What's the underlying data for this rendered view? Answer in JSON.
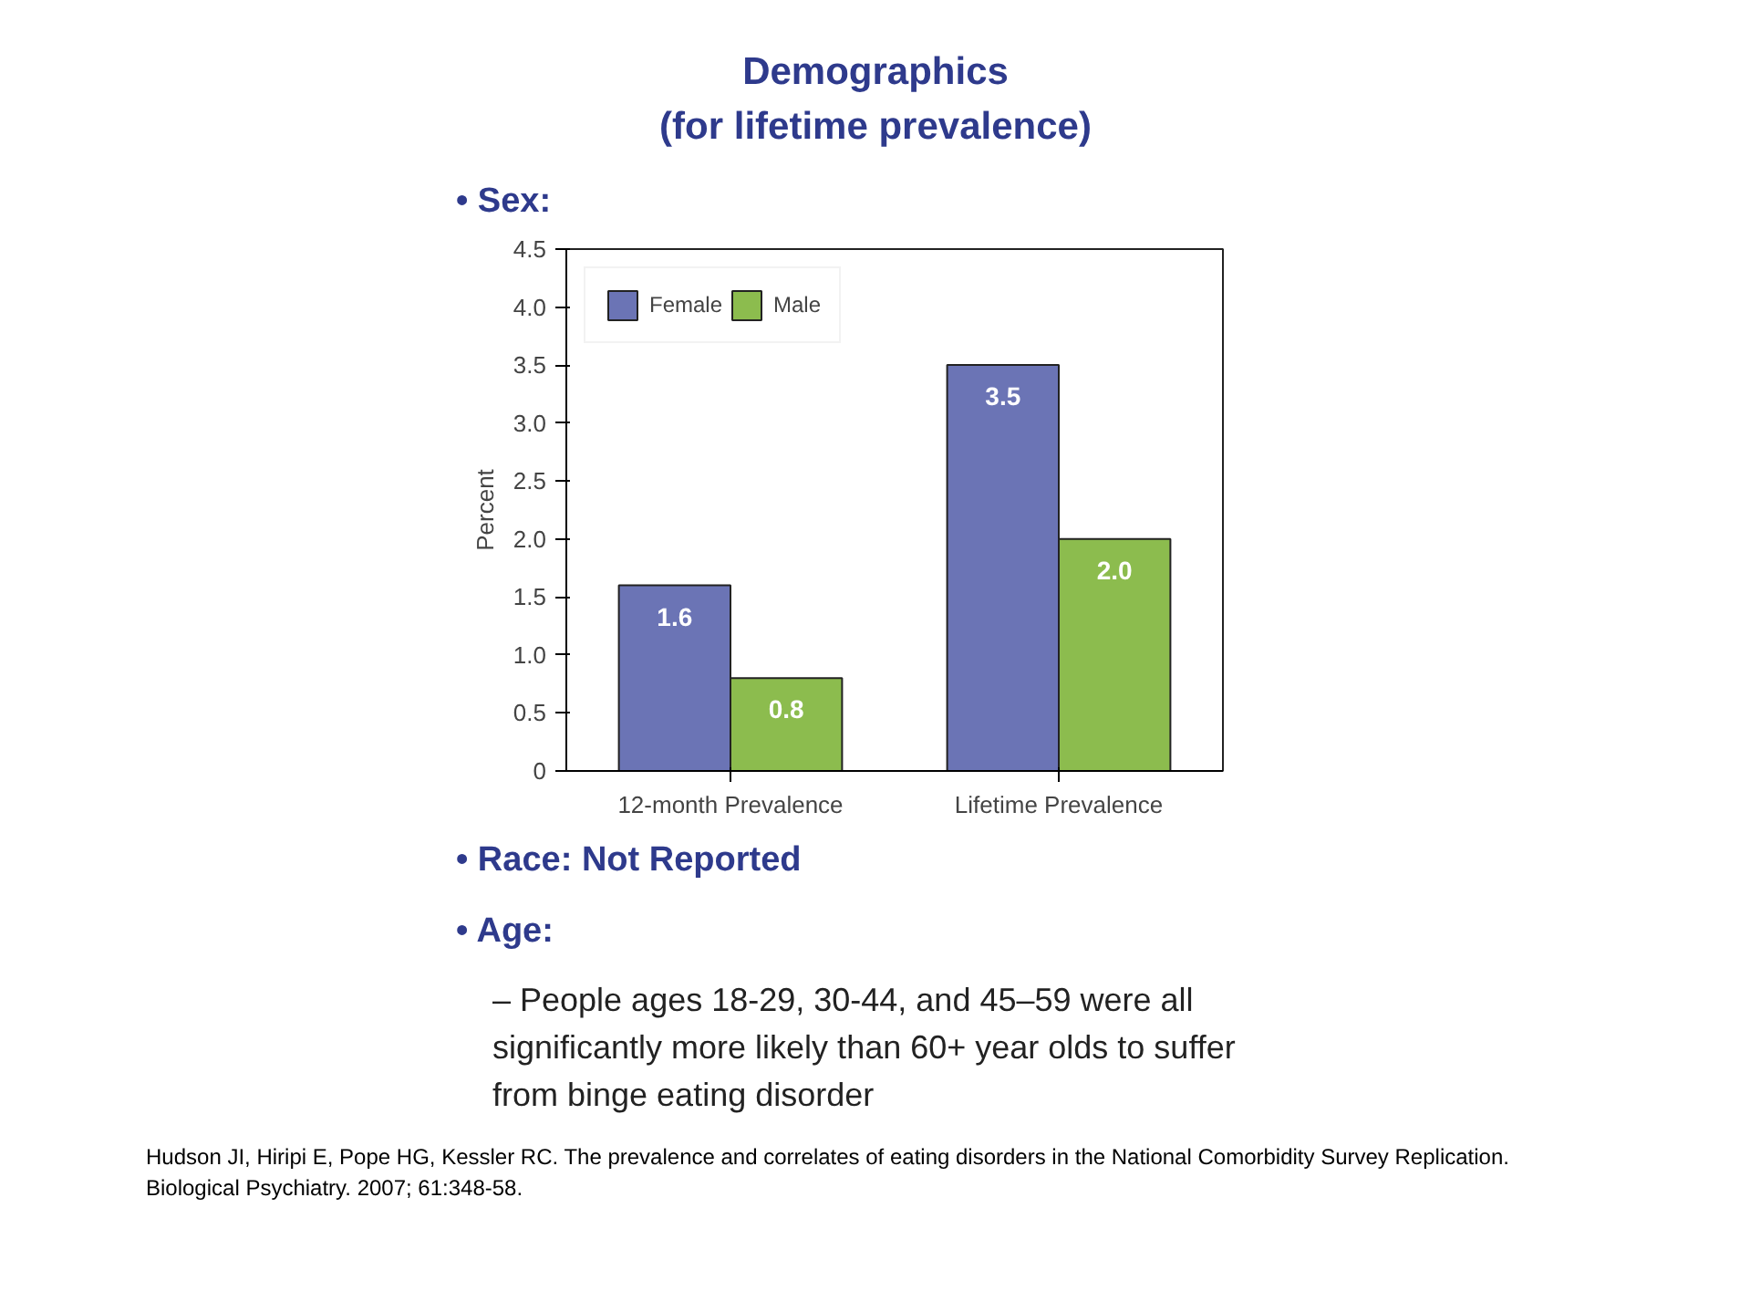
{
  "chart_data": {
    "type": "bar",
    "title": "Demographics\n(for lifetime prevalence)",
    "ylabel": "Percent",
    "categories": [
      "12-month Prevalence",
      "Lifetime Prevalence"
    ],
    "series": [
      {
        "name": "Female",
        "color": "#6b74b5",
        "values": [
          1.6,
          3.5
        ],
        "value_labels": [
          "1.6",
          "3.5"
        ]
      },
      {
        "name": "Male",
        "color": "#8cbc4e",
        "values": [
          0.8,
          2.0
        ],
        "value_labels": [
          "0.8",
          "2.0"
        ]
      }
    ],
    "ylim": [
      0,
      4.5
    ],
    "yticks": [
      0,
      0.5,
      {
        "value": 1,
        "label": "1.0"
      },
      1.5,
      {
        "value": 2,
        "label": "2.0"
      },
      2.5,
      {
        "value": 3,
        "label": "3.0"
      },
      3.5,
      {
        "value": 4,
        "label": "4.0"
      },
      4.5
    ],
    "grid": false,
    "legend": "top left",
    "annotations": [
      "• Sex:",
      "• Race: Not Reported",
      "• Age:",
      "– People ages 18-29, 30-44, and 45–59 were all significantly more likely than 60+ year olds to suffer from binge eating disorder",
      "Hudson JI, Hiripi E, Pope HG, Kessler RC. The prevalence and correlates of eating disorders in the National Comorbidity Survey Replication. Biological Psychiatry. 2007; 61:348-58."
    ]
  }
}
